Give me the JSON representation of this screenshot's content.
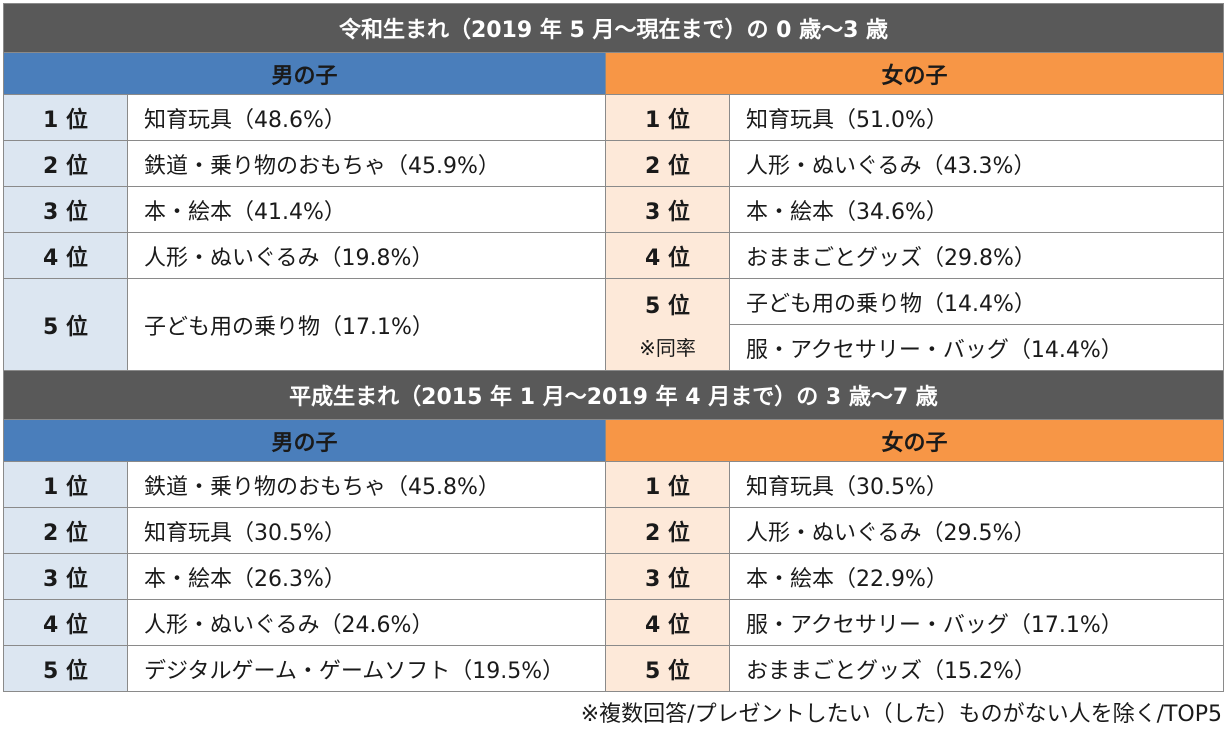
{
  "section1": {
    "title": "令和生まれ（2019 年 5 月〜現在まで）の 0 歳〜3 歳",
    "boys_header": "男の子",
    "girls_header": "女の子",
    "rows": [
      {
        "boy_rank": "1 位",
        "boy_item": "知育玩具（48.6%）",
        "girl_rank": "1 位",
        "girl_item": "知育玩具（51.0%）"
      },
      {
        "boy_rank": "2 位",
        "boy_item": "鉄道・乗り物のおもちゃ（45.9%）",
        "girl_rank": "2 位",
        "girl_item": "人形・ぬいぐるみ（43.3%）"
      },
      {
        "boy_rank": "3 位",
        "boy_item": "本・絵本（41.4%）",
        "girl_rank": "3 位",
        "girl_item": "本・絵本（34.6%）"
      },
      {
        "boy_rank": "4 位",
        "boy_item": "人形・ぬいぐるみ（19.8%）",
        "girl_rank": "4 位",
        "girl_item": "おままごとグッズ（29.8%）"
      }
    ],
    "row5": {
      "boy_rank": "5 位",
      "boy_item": "子ども用の乗り物（17.1%）",
      "girl_rank": "5 位",
      "girl_tie_note": "※同率",
      "girl_item_a": "子ども用の乗り物（14.4%）",
      "girl_item_b": "服・アクセサリー・バッグ（14.4%）"
    }
  },
  "section2": {
    "title": "平成生まれ（2015 年 1 月〜2019 年 4 月まで）の 3 歳〜7 歳",
    "boys_header": "男の子",
    "girls_header": "女の子",
    "rows": [
      {
        "boy_rank": "1 位",
        "boy_item": "鉄道・乗り物のおもちゃ（45.8%）",
        "girl_rank": "1 位",
        "girl_item": "知育玩具（30.5%）"
      },
      {
        "boy_rank": "2 位",
        "boy_item": "知育玩具（30.5%）",
        "girl_rank": "2 位",
        "girl_item": "人形・ぬいぐるみ（29.5%）"
      },
      {
        "boy_rank": "3 位",
        "boy_item": "本・絵本（26.3%）",
        "girl_rank": "3 位",
        "girl_item": "本・絵本（22.9%）"
      },
      {
        "boy_rank": "4 位",
        "boy_item": "人形・ぬいぐるみ（24.6%）",
        "girl_rank": "4 位",
        "girl_item": "服・アクセサリー・バッグ（17.1%）"
      },
      {
        "boy_rank": "5 位",
        "boy_item": "デジタルゲーム・ゲームソフト（19.5%）",
        "girl_rank": "5 位",
        "girl_item": "おままごとグッズ（15.2%）"
      }
    ]
  },
  "footnote": "※複数回答/プレゼントしたい（した）ものがない人を除く/TOP5"
}
